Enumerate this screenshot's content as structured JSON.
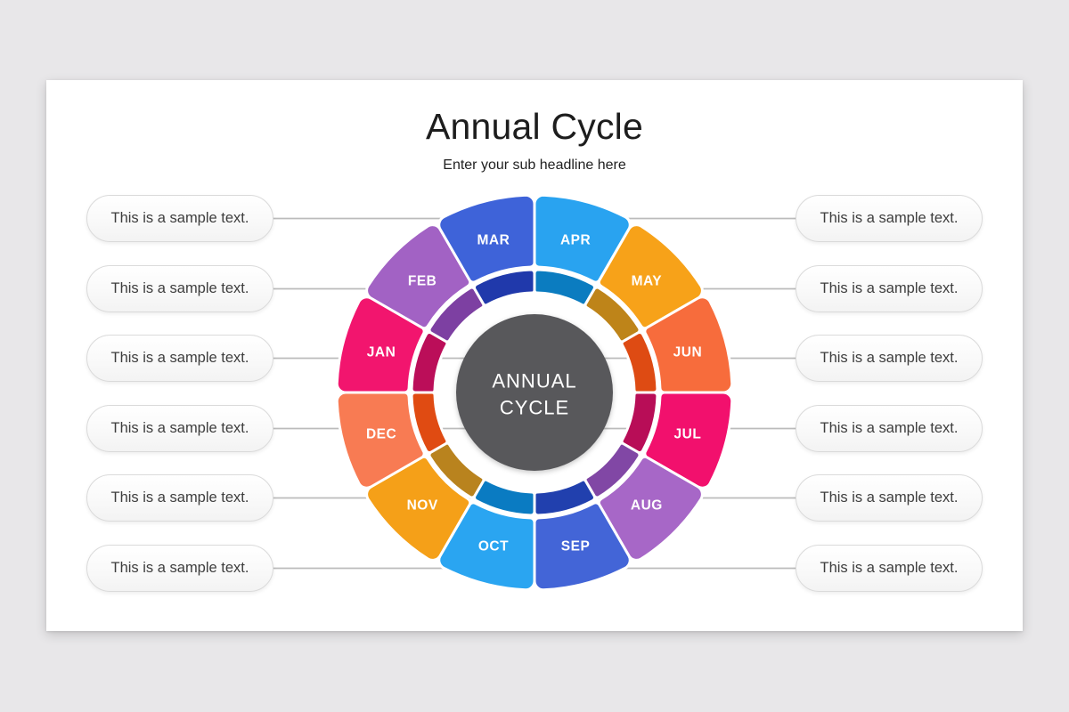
{
  "slide": {
    "title": "Annual Cycle",
    "subtitle": "Enter your sub headline here"
  },
  "wheel": {
    "center": {
      "line1": "ANNUAL",
      "line2": "CYCLE",
      "bg_color": "#58585B",
      "text_color": "#FFFFFF"
    },
    "months": [
      {
        "label": "JAN",
        "color": "#F2156E",
        "inner_color": "#BB0E59"
      },
      {
        "label": "FEB",
        "color": "#A262C4",
        "inner_color": "#7D40A2"
      },
      {
        "label": "MAR",
        "color": "#3E63D9",
        "inner_color": "#2039AB"
      },
      {
        "label": "APR",
        "color": "#29A3F0",
        "inner_color": "#0B7CC0"
      },
      {
        "label": "MAY",
        "color": "#F7A219",
        "inner_color": "#BE8419"
      },
      {
        "label": "JUN",
        "color": "#F76C3C",
        "inner_color": "#DE4B13"
      },
      {
        "label": "JUL",
        "color": "#F2106D",
        "inner_color": "#B80D57"
      },
      {
        "label": "AUG",
        "color": "#A767C7",
        "inner_color": "#8147A5"
      },
      {
        "label": "SEP",
        "color": "#4365D7",
        "inner_color": "#2140AE"
      },
      {
        "label": "OCT",
        "color": "#2AA5F1",
        "inner_color": "#0A7BC2"
      },
      {
        "label": "NOV",
        "color": "#F5A018",
        "inner_color": "#B9831E"
      },
      {
        "label": "DEC",
        "color": "#F87B53",
        "inner_color": "#E04B12"
      }
    ]
  },
  "callouts": {
    "left": [
      "This is a sample text.",
      "This is a sample text.",
      "This is a sample text.",
      "This is a sample text.",
      "This is a sample text.",
      "This is a sample text."
    ],
    "right": [
      "This is a sample text.",
      "This is a sample text.",
      "This is a sample text.",
      "This is a sample text.",
      "This is a sample text.",
      "This is a sample text."
    ]
  },
  "connectors": {
    "color": "#BBBBBB"
  }
}
